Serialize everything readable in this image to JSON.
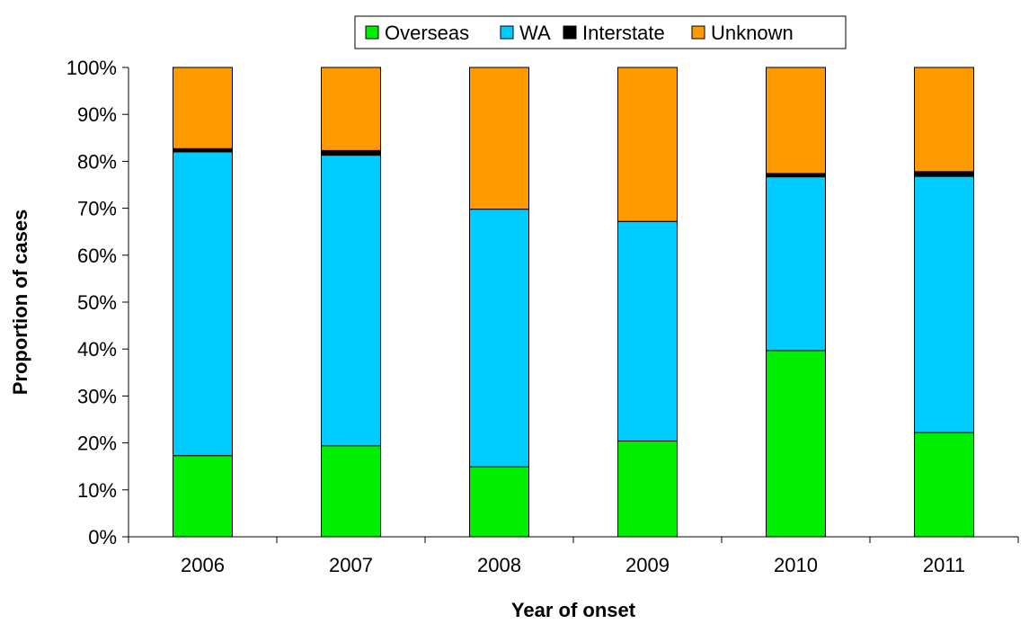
{
  "chart_data": {
    "type": "bar",
    "stacked": true,
    "categories": [
      "2006",
      "2007",
      "2008",
      "2009",
      "2010",
      "2011"
    ],
    "series": [
      {
        "name": "Overseas",
        "color": "#00ee00",
        "values": [
          17.3,
          19.4,
          14.9,
          20.4,
          39.7,
          22.2
        ]
      },
      {
        "name": "WA",
        "color": "#00ccff",
        "values": [
          64.7,
          61.9,
          54.9,
          46.8,
          37.0,
          54.6
        ]
      },
      {
        "name": "Interstate",
        "color": "#000000",
        "values": [
          0.7,
          1.0,
          0.0,
          0.0,
          0.7,
          1.0
        ]
      },
      {
        "name": "Unknown",
        "color": "#ff9900",
        "values": [
          17.3,
          17.7,
          30.2,
          32.8,
          22.6,
          22.2
        ]
      }
    ],
    "xlabel": "Year of onset",
    "ylabel": "Proportion of cases",
    "ylim": [
      0,
      100
    ],
    "yticks": [
      "0%",
      "10%",
      "20%",
      "30%",
      "40%",
      "50%",
      "60%",
      "70%",
      "80%",
      "90%",
      "100%"
    ],
    "legend_position": "top-center",
    "grid": false
  }
}
